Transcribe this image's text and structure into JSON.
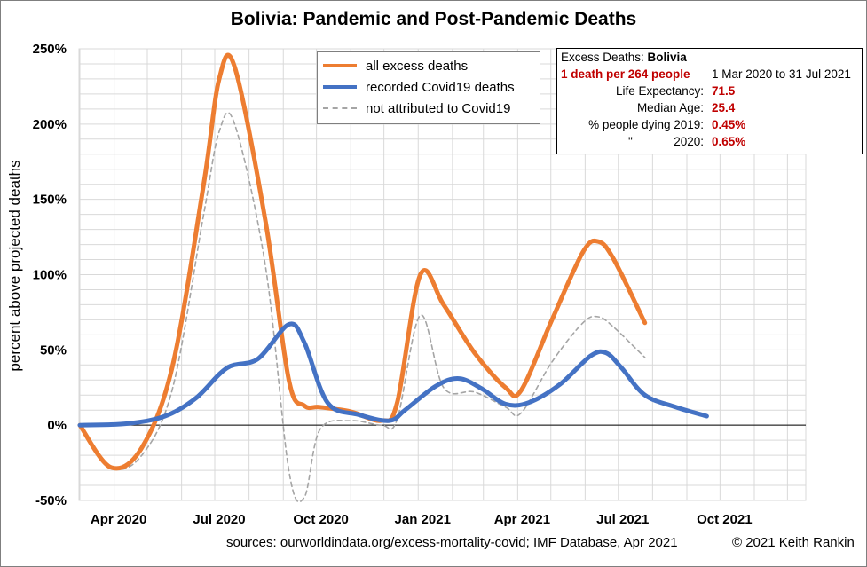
{
  "title": {
    "country": "Bolivia",
    "rest": ": Pandemic and Post-Pandemic Deaths"
  },
  "legend": {
    "items": [
      {
        "label": "all excess deaths",
        "color": "#ED7D31",
        "style": "solid"
      },
      {
        "label": "recorded Covid19 deaths",
        "color": "#4472C4",
        "style": "solid"
      },
      {
        "label": "not attributed to Covid19",
        "color": "#A5A5A5",
        "style": "dashed"
      }
    ]
  },
  "infobox": {
    "heading_label": "Excess Deaths: ",
    "heading_country": "Bolivia",
    "death_rate": "1 death per 264 people",
    "period": "1 Mar 2020 to 31 Jul 2021",
    "life_exp_label": "Life Expectancy:",
    "life_exp_value": "71.5",
    "median_age_label": "Median Age:",
    "median_age_value": "25.4",
    "dying_2019_label": "% people dying 2019:",
    "dying_2019_value": "0.45%",
    "ditto_mark": "\"",
    "dying_2020_label": "2020:",
    "dying_2020_value": "0.65%"
  },
  "footer": {
    "sources": "sources:  ourworldindata.org/excess-mortality-covid;  IMF Database, Apr 2021",
    "copyright": "© 2021 Keith Rankin"
  },
  "chart_data": {
    "type": "line",
    "title": "Bolivia: Pandemic and Post-Pandemic Deaths",
    "xlabel": "",
    "ylabel": "percent above projected deaths",
    "x_tick_labels": [
      "Apr 2020",
      "Jul 2020",
      "Oct 2020",
      "Jan 2021",
      "Apr 2021",
      "Jul 2021",
      "Oct 2021"
    ],
    "y_tick_labels": [
      "-50%",
      "0%",
      "50%",
      "100%",
      "150%",
      "200%",
      "250%"
    ],
    "ylim": [
      -50,
      250
    ],
    "xlim": [
      "2020-03-01",
      "2021-12-31"
    ],
    "grid": true,
    "legend_position": "top-center",
    "series": [
      {
        "name": "all excess deaths",
        "color": "#ED7D31",
        "dates": [
          "2020-03-01",
          "2020-03-29",
          "2020-04-26",
          "2020-05-24",
          "2020-06-21",
          "2020-07-05",
          "2020-07-19",
          "2020-08-16",
          "2020-09-06",
          "2020-09-20",
          "2020-10-04",
          "2020-11-01",
          "2020-11-29",
          "2020-12-13",
          "2021-01-03",
          "2021-01-24",
          "2021-02-21",
          "2021-03-21",
          "2021-04-04",
          "2021-05-02",
          "2021-05-30",
          "2021-06-13",
          "2021-06-27",
          "2021-07-25"
        ],
        "values": [
          0,
          -28,
          -15,
          40,
          160,
          230,
          238,
          135,
          30,
          13,
          12,
          9,
          3,
          15,
          100,
          80,
          48,
          25,
          23,
          70,
          115,
          122,
          110,
          68
        ]
      },
      {
        "name": "recorded Covid19 deaths",
        "color": "#4472C4",
        "dates": [
          "2020-03-01",
          "2020-04-12",
          "2020-05-17",
          "2020-06-14",
          "2020-07-12",
          "2020-08-09",
          "2020-09-06",
          "2020-09-20",
          "2020-10-11",
          "2020-11-08",
          "2020-12-06",
          "2020-12-20",
          "2021-01-17",
          "2021-02-07",
          "2021-02-28",
          "2021-03-21",
          "2021-04-11",
          "2021-05-09",
          "2021-06-06",
          "2021-06-20",
          "2021-07-04",
          "2021-07-25",
          "2021-08-22",
          "2021-09-19"
        ],
        "values": [
          0,
          1,
          6,
          18,
          38,
          44,
          67,
          55,
          15,
          7,
          3,
          10,
          26,
          31,
          24,
          14,
          15,
          27,
          46,
          48,
          38,
          20,
          12,
          6
        ]
      },
      {
        "name": "not attributed to Covid19",
        "color": "#A5A5A5",
        "dates": [
          "2020-03-01",
          "2020-03-29",
          "2020-04-26",
          "2020-05-24",
          "2020-06-21",
          "2020-07-05",
          "2020-07-19",
          "2020-08-16",
          "2020-09-06",
          "2020-09-20",
          "2020-10-04",
          "2020-11-01",
          "2020-11-29",
          "2020-12-13",
          "2021-01-03",
          "2021-01-24",
          "2021-02-21",
          "2021-03-21",
          "2021-04-04",
          "2021-05-02",
          "2021-05-30",
          "2021-06-13",
          "2021-06-27",
          "2021-07-25"
        ],
        "values": [
          0,
          -28,
          -20,
          25,
          140,
          195,
          200,
          105,
          -30,
          -48,
          -3,
          3,
          0,
          4,
          73,
          25,
          22,
          12,
          8,
          42,
          68,
          72,
          65,
          45
        ]
      }
    ]
  }
}
